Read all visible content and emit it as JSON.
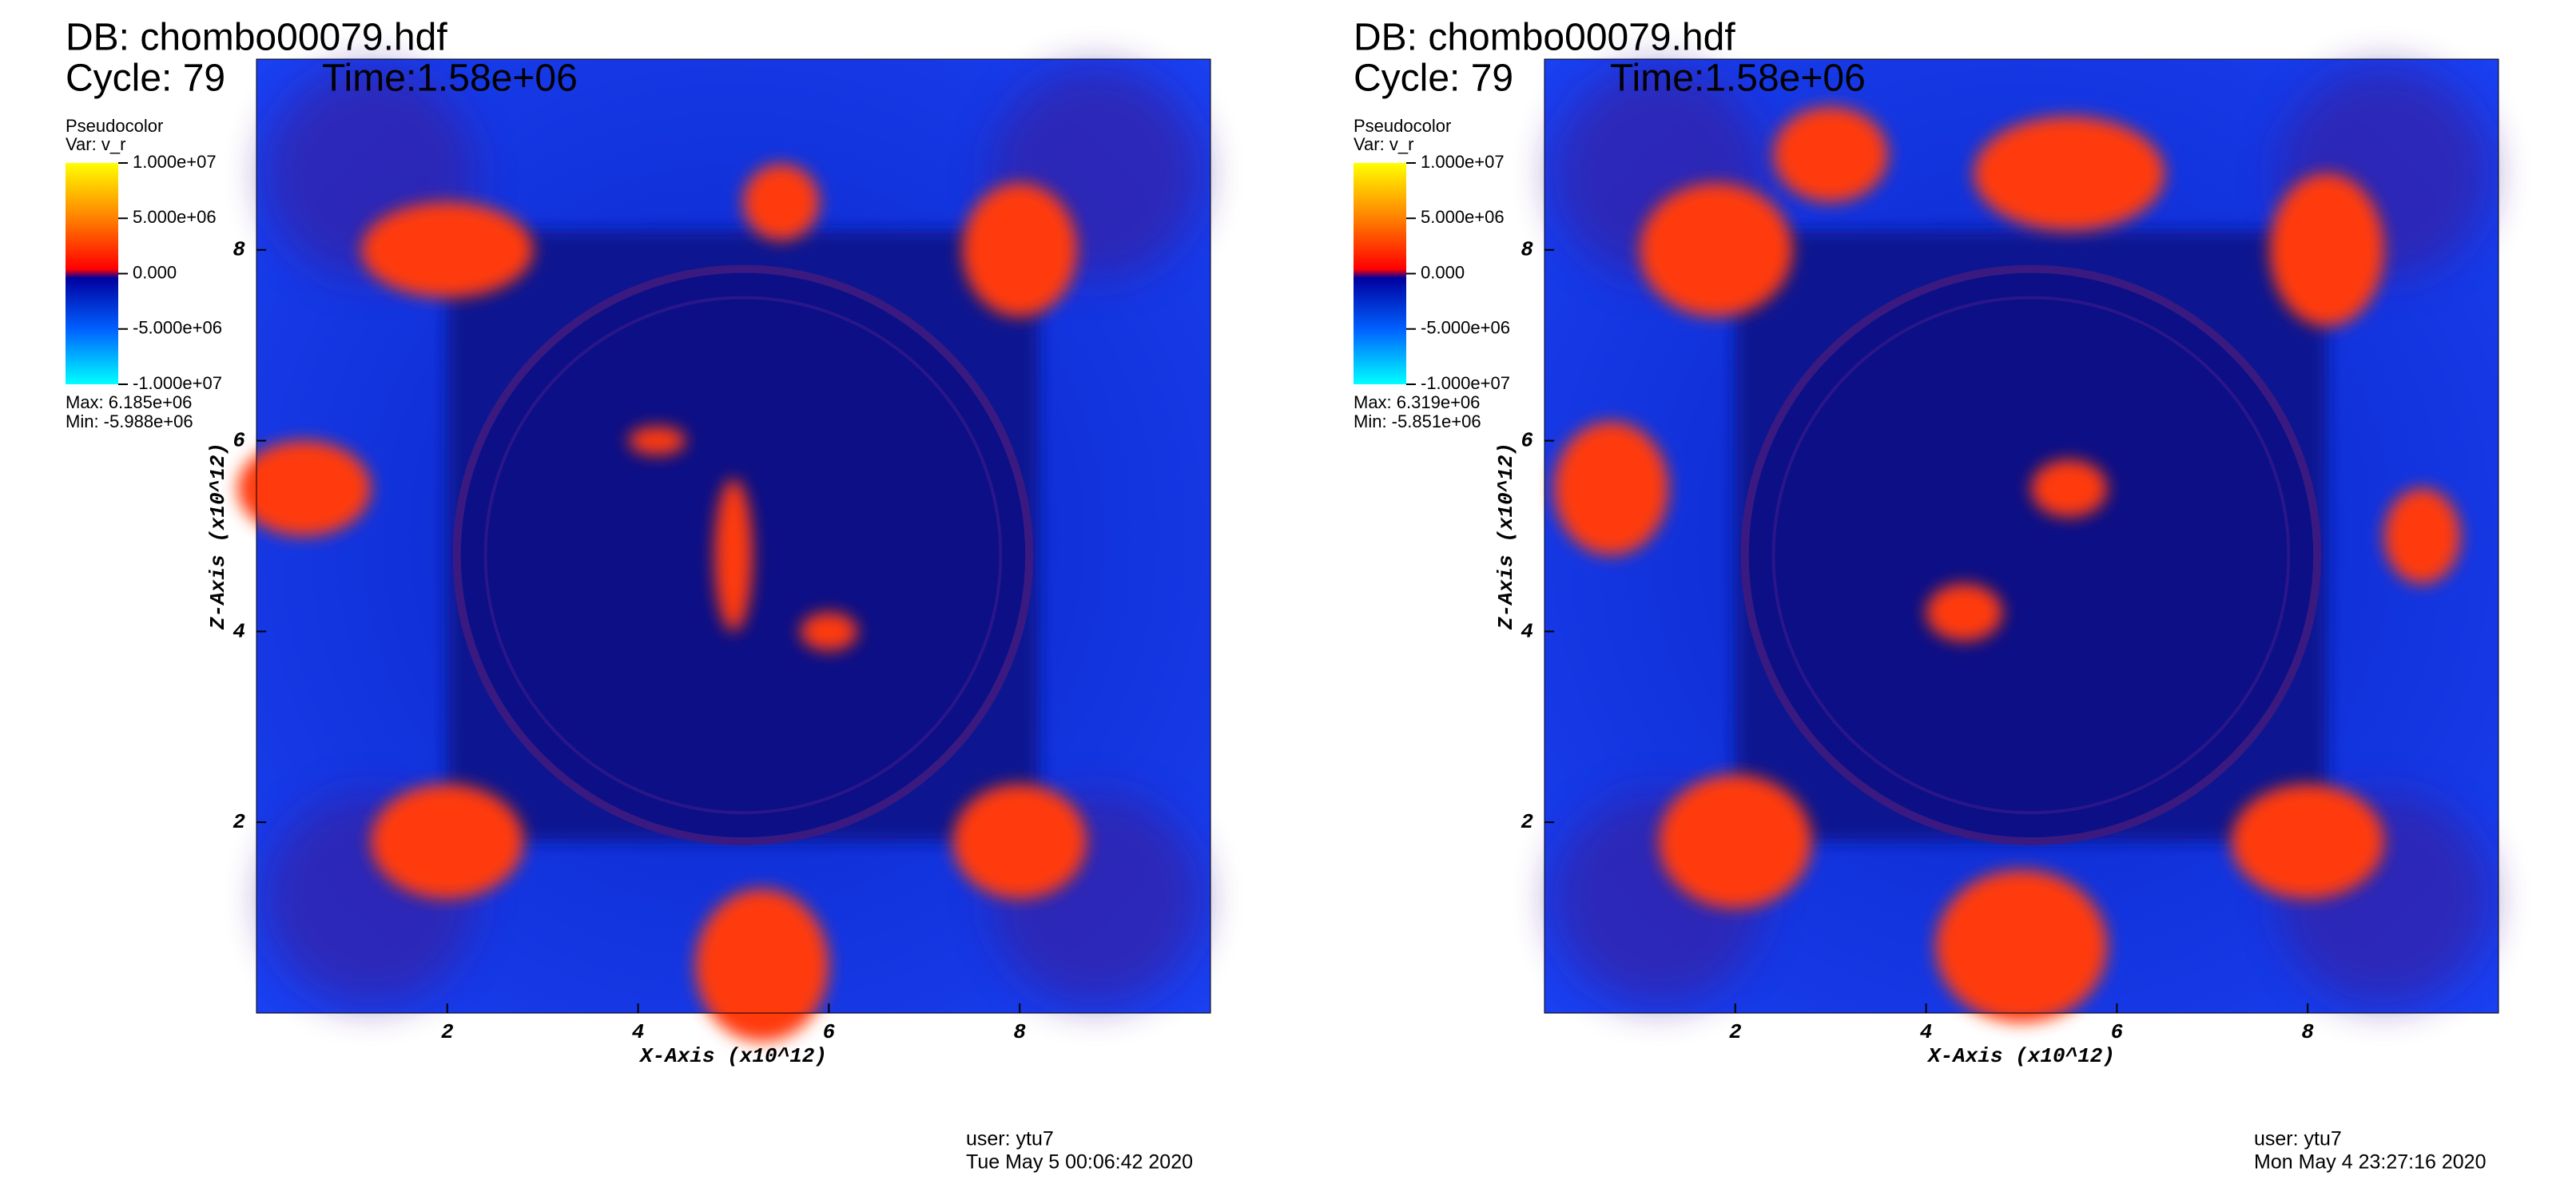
{
  "panels": [
    {
      "db": "DB: chombo00079.hdf",
      "cycle": "Cycle: 79",
      "time": "Time:1.58e+06",
      "legend": {
        "plot": "Pseudocolor",
        "var": "Var: v_r",
        "ticks": [
          {
            "value": 10000000,
            "label": "1.000e+07"
          },
          {
            "value": 5000000,
            "label": "5.000e+06"
          },
          {
            "value": 0,
            "label": "0.000"
          },
          {
            "value": -5000000,
            "label": "-5.000e+06"
          },
          {
            "value": -10000000,
            "label": "-1.000e+07"
          }
        ],
        "max": "Max:  6.185e+06",
        "min": "Min: -5.988e+06"
      },
      "x_label": "X-Axis (x10^12)",
      "y_label": "Z-Axis (x10^12)",
      "xlim": [
        0,
        10
      ],
      "ylim": [
        0,
        10
      ],
      "xticks": [
        2,
        4,
        6,
        8
      ],
      "yticks": [
        2,
        4,
        6,
        8
      ],
      "user": "user: ytu7",
      "date": "Tue May  5 00:06:42 2020"
    },
    {
      "db": "DB: chombo00079.hdf",
      "cycle": "Cycle: 79",
      "time": "Time:1.58e+06",
      "legend": {
        "plot": "Pseudocolor",
        "var": "Var: v_r",
        "ticks": [
          {
            "value": 10000000,
            "label": "1.000e+07"
          },
          {
            "value": 5000000,
            "label": "5.000e+06"
          },
          {
            "value": 0,
            "label": "0.000"
          },
          {
            "value": -5000000,
            "label": "-5.000e+06"
          },
          {
            "value": -10000000,
            "label": "-1.000e+07"
          }
        ],
        "max": "Max:  6.319e+06",
        "min": "Min: -5.851e+06"
      },
      "x_label": "X-Axis (x10^12)",
      "y_label": "Z-Axis (x10^12)",
      "xlim": [
        0,
        10
      ],
      "ylim": [
        0,
        10
      ],
      "xticks": [
        2,
        4,
        6,
        8
      ],
      "yticks": [
        2,
        4,
        6,
        8
      ],
      "user": "user: ytu7",
      "date": "Mon May  4 23:27:16 2020"
    }
  ]
}
